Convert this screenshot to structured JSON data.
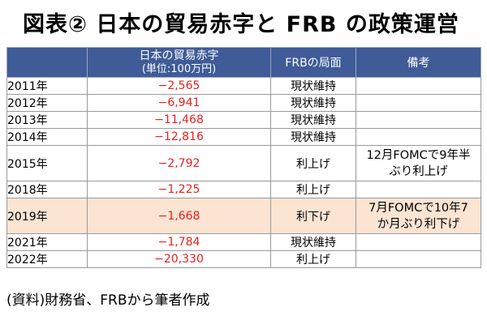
{
  "title": "図表② 日本の貿易赤字と FRB の政策運営",
  "table": {
    "headers": {
      "year": "",
      "deficit_line1": "日本の貿易赤字",
      "deficit_line2": "(単位:100万円)",
      "phase": "FRBの局面",
      "note": "備考"
    },
    "rows": [
      {
        "year": "2011年",
        "deficit": "−2,565",
        "phase": "現状維持",
        "note_line1": "",
        "note_line2": ""
      },
      {
        "year": "2012年",
        "deficit": "−6,941",
        "phase": "現状維持",
        "note_line1": "",
        "note_line2": ""
      },
      {
        "year": "2013年",
        "deficit": "−11,468",
        "phase": "現状維持",
        "note_line1": "",
        "note_line2": ""
      },
      {
        "year": "2014年",
        "deficit": "−12,816",
        "phase": "現状維持",
        "note_line1": "",
        "note_line2": ""
      },
      {
        "year": "2015年",
        "deficit": "−2,792",
        "phase": "利上げ",
        "note_line1": "12月FOMCで9年半",
        "note_line2": "ぶり利上げ"
      },
      {
        "year": "2018年",
        "deficit": "−1,225",
        "phase": "利上げ",
        "note_line1": "",
        "note_line2": ""
      },
      {
        "year": "2019年",
        "deficit": "−1,668",
        "phase": "利下げ",
        "note_line1": "7月FOMCで10年7",
        "note_line2": "か月ぶり利下げ"
      },
      {
        "year": "2021年",
        "deficit": "−1,784",
        "phase": "現状維持",
        "note_line1": "",
        "note_line2": ""
      },
      {
        "year": "2022年",
        "deficit": "−20,330",
        "phase": "利上げ",
        "note_line1": "",
        "note_line2": ""
      }
    ]
  },
  "source": "(資料)財務省、FRBから筆者作成",
  "colors": {
    "header_bg": "#3F5C98",
    "header_text": "#FFFFFF",
    "deficit_text": "#E8201F",
    "highlight_row": "#FCE4D2"
  }
}
